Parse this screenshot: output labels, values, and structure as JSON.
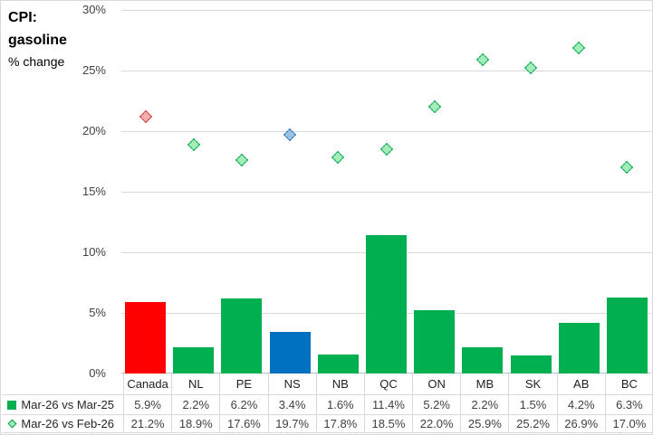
{
  "title": {
    "line1": "CPI:",
    "line2": "gasoline",
    "subtitle": "% change"
  },
  "colors": {
    "bar_green": "#00b050",
    "bar_red": "#ff0000",
    "bar_blue": "#0070c0",
    "gridline": "#d9d9d9",
    "diamond_green_fill": "#a2edb8",
    "diamond_green_border": "#00a14b",
    "diamond_red_fill": "#f6adad",
    "diamond_red_border": "#cc3333",
    "diamond_blue_fill": "#9cc3e5",
    "diamond_blue_border": "#2e74b5"
  },
  "chart_data": {
    "type": "combo",
    "title": "CPI: gasoline % change",
    "categories": [
      "Canada",
      "NL",
      "PE",
      "NS",
      "NB",
      "QC",
      "ON",
      "MB",
      "SK",
      "AB",
      "BC"
    ],
    "series": [
      {
        "name": "Mar-26 vs Mar-25",
        "type": "bar",
        "values": [
          5.9,
          2.2,
          6.2,
          3.4,
          1.6,
          11.4,
          5.2,
          2.2,
          1.5,
          4.2,
          6.3
        ],
        "colors": [
          "#ff0000",
          "#00b050",
          "#00b050",
          "#0070c0",
          "#00b050",
          "#00b050",
          "#00b050",
          "#00b050",
          "#00b050",
          "#00b050",
          "#00b050"
        ]
      },
      {
        "name": "Mar-26 vs Feb-26",
        "type": "scatter",
        "marker": "diamond",
        "values": [
          21.2,
          18.9,
          17.6,
          19.7,
          17.8,
          18.5,
          22.0,
          25.9,
          25.2,
          26.9,
          17.0
        ],
        "fill_colors": [
          "#f6adad",
          "#a2edb8",
          "#a2edb8",
          "#9cc3e5",
          "#a2edb8",
          "#a2edb8",
          "#a2edb8",
          "#a2edb8",
          "#a2edb8",
          "#a2edb8",
          "#a2edb8"
        ],
        "border_colors": [
          "#cc3333",
          "#00a14b",
          "#00a14b",
          "#2e74b5",
          "#00a14b",
          "#00a14b",
          "#00a14b",
          "#00a14b",
          "#00a14b",
          "#00a14b",
          "#00a14b"
        ]
      }
    ],
    "ylim": [
      0,
      30
    ],
    "yticks": [
      "30%",
      "25%",
      "20%",
      "15%",
      "10%",
      "5%",
      "0%"
    ],
    "grid": true,
    "legend_position": "bottom-left-table"
  },
  "table": {
    "columns": [
      "Canada",
      "NL",
      "PE",
      "NS",
      "NB",
      "QC",
      "ON",
      "MB",
      "SK",
      "AB",
      "BC"
    ],
    "row_labels": [
      "Mar-26 vs Mar-25",
      "Mar-26 vs Feb-26"
    ],
    "rows": [
      [
        "5.9%",
        "2.2%",
        "6.2%",
        "3.4%",
        "1.6%",
        "11.4%",
        "5.2%",
        "2.2%",
        "1.5%",
        "4.2%",
        "6.3%"
      ],
      [
        "21.2%",
        "18.9%",
        "17.6%",
        "19.7%",
        "17.8%",
        "18.5%",
        "22.0%",
        "25.9%",
        "25.2%",
        "26.9%",
        "17.0%"
      ]
    ]
  }
}
